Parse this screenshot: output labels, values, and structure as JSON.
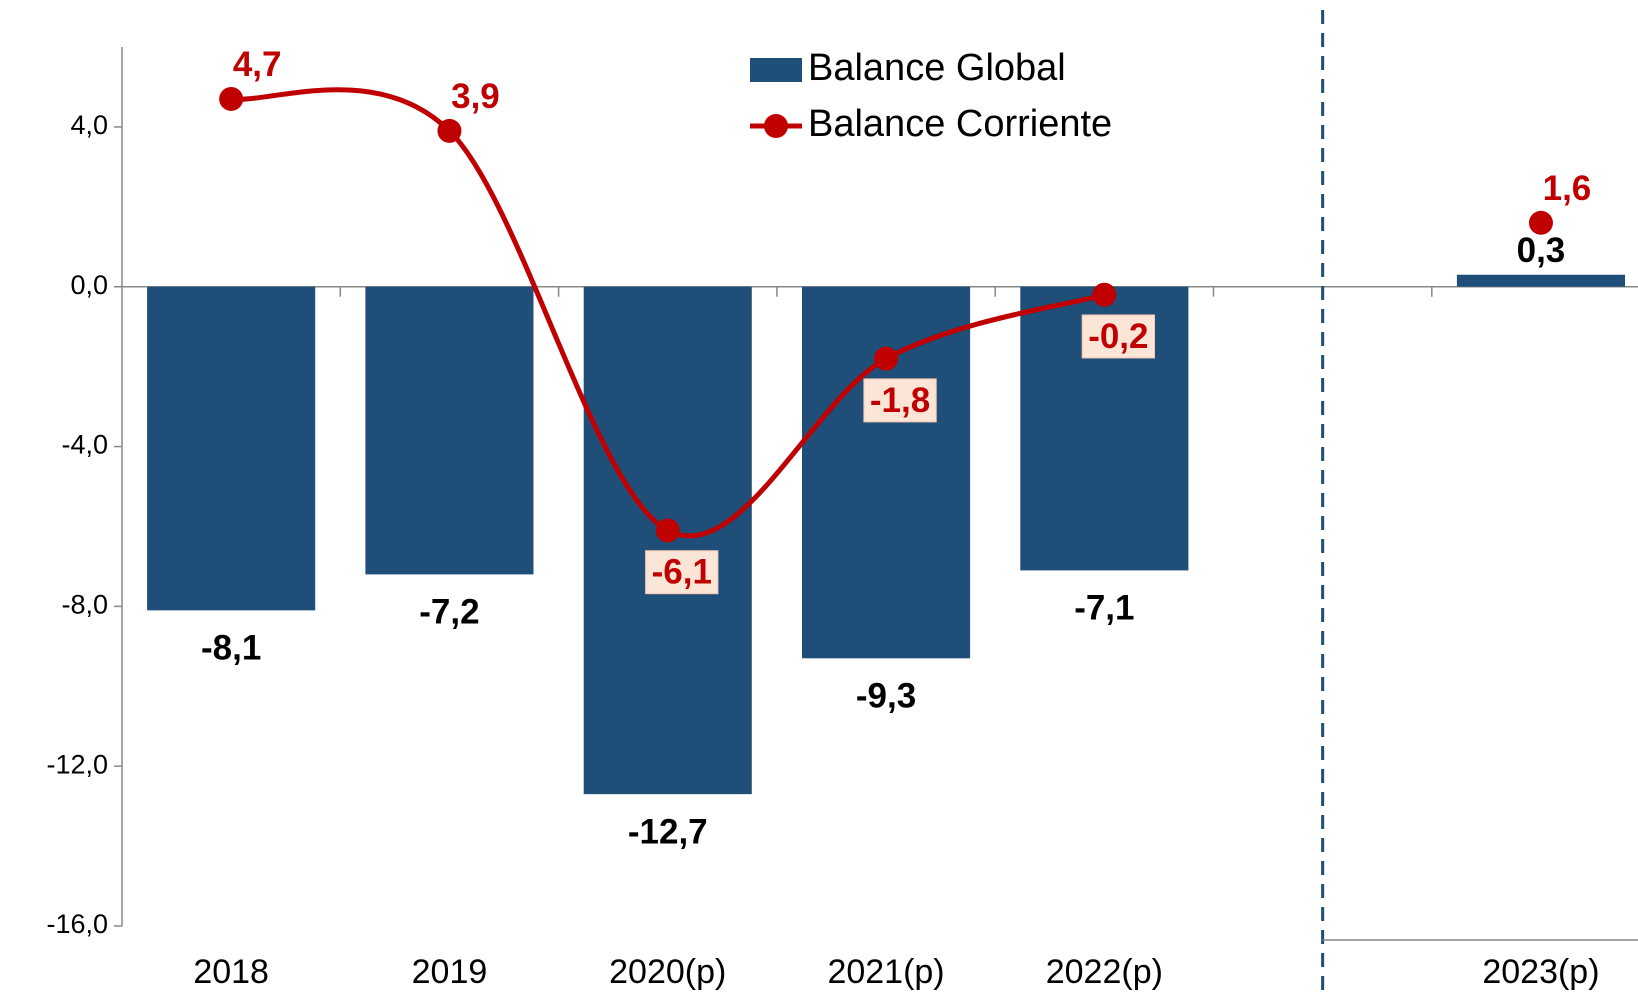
{
  "chart_data": {
    "type": "bar",
    "categories": [
      "2018",
      "2019",
      "2020(p)",
      "2021(p)",
      "2022(p)",
      null,
      "2023(p)"
    ],
    "series": [
      {
        "name": "Balance Global",
        "type": "bar",
        "color": "#1f4e79",
        "values": [
          -8.1,
          -7.2,
          -12.7,
          -9.3,
          -7.1,
          null,
          0.3
        ],
        "value_labels": [
          "-8,1",
          "-7,2",
          "-12,7",
          "-9,3",
          "-7,1",
          null,
          "0,3"
        ]
      },
      {
        "name": "Balance Corriente",
        "type": "line",
        "color": "#c00000",
        "values": [
          4.7,
          3.9,
          -6.1,
          -1.8,
          -0.2,
          null,
          1.6
        ],
        "value_labels": [
          "4,7",
          "3,9",
          "-6,1",
          "-1,8",
          "-0,2",
          null,
          "1,6"
        ]
      }
    ],
    "ylim": [
      -16,
      6
    ],
    "yticks": [
      {
        "value": -16,
        "label": "-16,0"
      },
      {
        "value": -12,
        "label": "-12,0"
      },
      {
        "value": -8,
        "label": "-8,0"
      },
      {
        "value": -4,
        "label": "-4,0"
      },
      {
        "value": 0,
        "label": "0,0"
      },
      {
        "value": 4,
        "label": "4,0"
      }
    ],
    "legend": "top-center",
    "grid": false
  }
}
